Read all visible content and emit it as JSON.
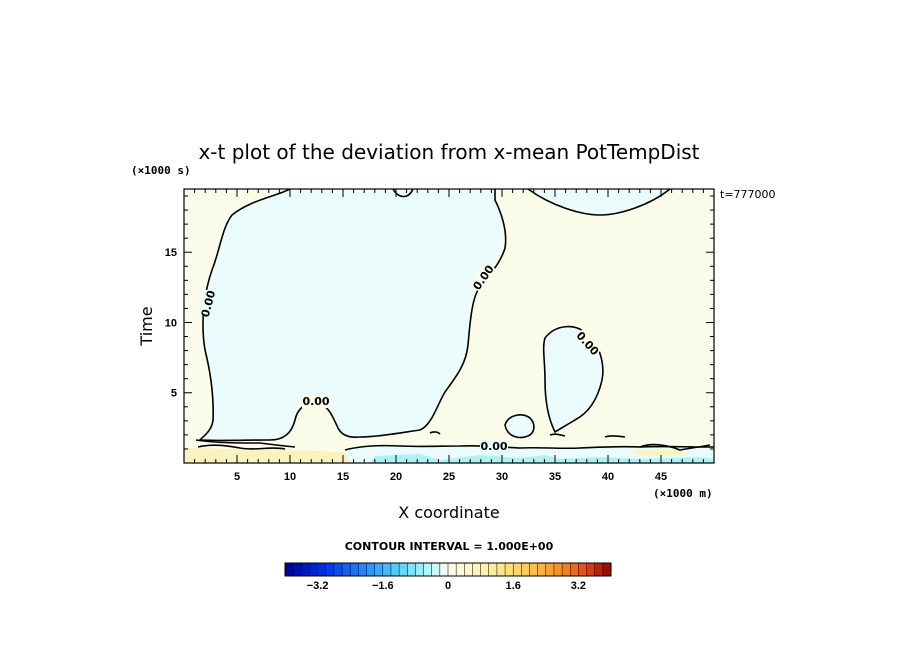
{
  "chart_data": {
    "type": "heatmap",
    "title": "x-t plot of the deviation from x-mean PotTempDist",
    "xlabel": "X coordinate",
    "ylabel": "Time",
    "xunit": "(×1000 m)",
    "yunit": "(×1000 s)",
    "time_label": "t=777000",
    "xlim": [
      0,
      50
    ],
    "ylim": [
      0,
      19.5
    ],
    "xticks": [
      5,
      10,
      15,
      20,
      25,
      30,
      35,
      40,
      45
    ],
    "yticks": [
      5,
      10,
      15
    ],
    "contour_labels": [
      "0.00",
      "0.00",
      "0.00",
      "0.00",
      "0.00"
    ],
    "contour_interval_text": "CONTOUR INTERVAL = 1.000E+00",
    "colorbar": {
      "range": [
        -4,
        4
      ],
      "tick_labels": [
        "-3.2",
        "-1.6",
        "0",
        "1.6",
        "3.2"
      ],
      "tick_values": [
        -3.2,
        -1.6,
        0,
        1.6,
        3.2
      ]
    },
    "regions": [
      {
        "sign": "negative",
        "color": "#eafcfc",
        "description_value": -0.3
      },
      {
        "sign": "positive",
        "color": "#fcfcea",
        "description_value": 0.3
      },
      {
        "sign": "positive_strong",
        "color": "#faf3bf",
        "description_value": 0.9
      },
      {
        "sign": "negative_strong",
        "color": "#aef2f4",
        "description_value": -0.9
      }
    ]
  }
}
